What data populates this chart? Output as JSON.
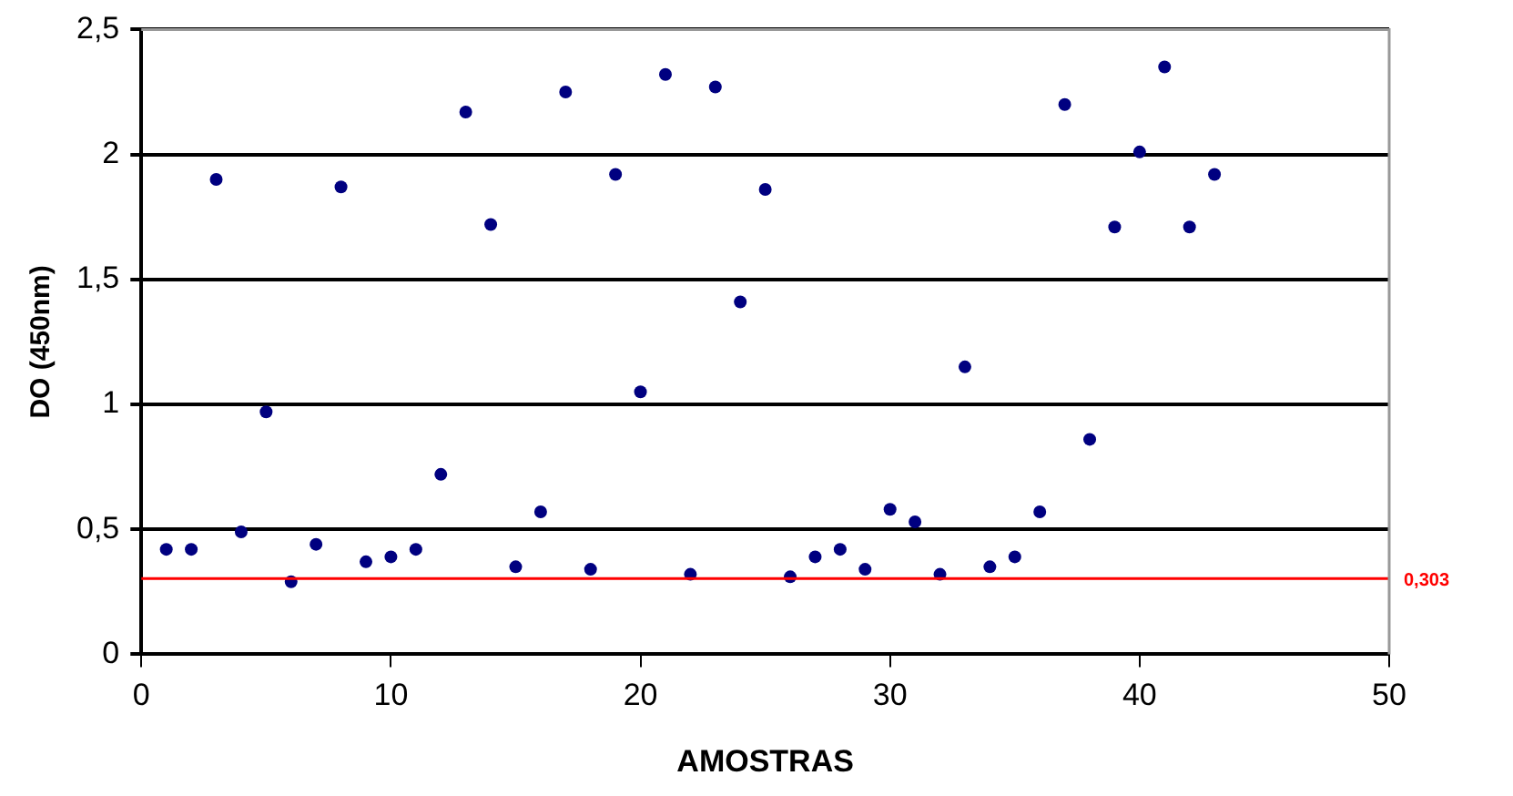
{
  "chart_data": {
    "type": "scatter",
    "xlabel": "AMOSTRAS",
    "ylabel": "DO (450nm)",
    "x": [
      1,
      2,
      3,
      4,
      5,
      6,
      7,
      8,
      9,
      10,
      11,
      12,
      13,
      14,
      15,
      16,
      17,
      18,
      19,
      20,
      21,
      22,
      23,
      24,
      25,
      26,
      27,
      28,
      29,
      30,
      31,
      32,
      33,
      34,
      35,
      36,
      37,
      38,
      39,
      40,
      41,
      42,
      43
    ],
    "series": [
      {
        "color": "#000080",
        "values": [
          0.42,
          0.42,
          1.9,
          0.49,
          0.97,
          0.29,
          0.44,
          1.87,
          0.37,
          0.39,
          0.42,
          0.72,
          2.17,
          1.72,
          0.35,
          0.57,
          2.25,
          0.34,
          1.92,
          1.05,
          2.32,
          0.32,
          2.27,
          1.41,
          1.86,
          0.31,
          0.39,
          0.42,
          0.34,
          0.58,
          0.53,
          0.32,
          1.15,
          0.35,
          0.39,
          0.57,
          2.2,
          0.86,
          1.71,
          2.01,
          2.35,
          1.71,
          1.92
        ]
      }
    ],
    "xlim": [
      0,
      50
    ],
    "xticks": [
      0,
      10,
      20,
      30,
      40,
      50
    ],
    "ylim": [
      0,
      2.5
    ],
    "yticks": [
      {
        "value": 0,
        "label": "0"
      },
      {
        "value": 0.5,
        "label": "0,5"
      },
      {
        "value": 1,
        "label": "1"
      },
      {
        "value": 1.5,
        "label": "1,5"
      },
      {
        "value": 2,
        "label": "2"
      },
      {
        "value": 2.5,
        "label": "2,5"
      }
    ],
    "ref_lines": [
      {
        "axis": "y",
        "value": 0.303,
        "label": "0,303",
        "color": "#ff0000"
      }
    ],
    "grid": "y",
    "legend": false,
    "marker": "circle"
  }
}
